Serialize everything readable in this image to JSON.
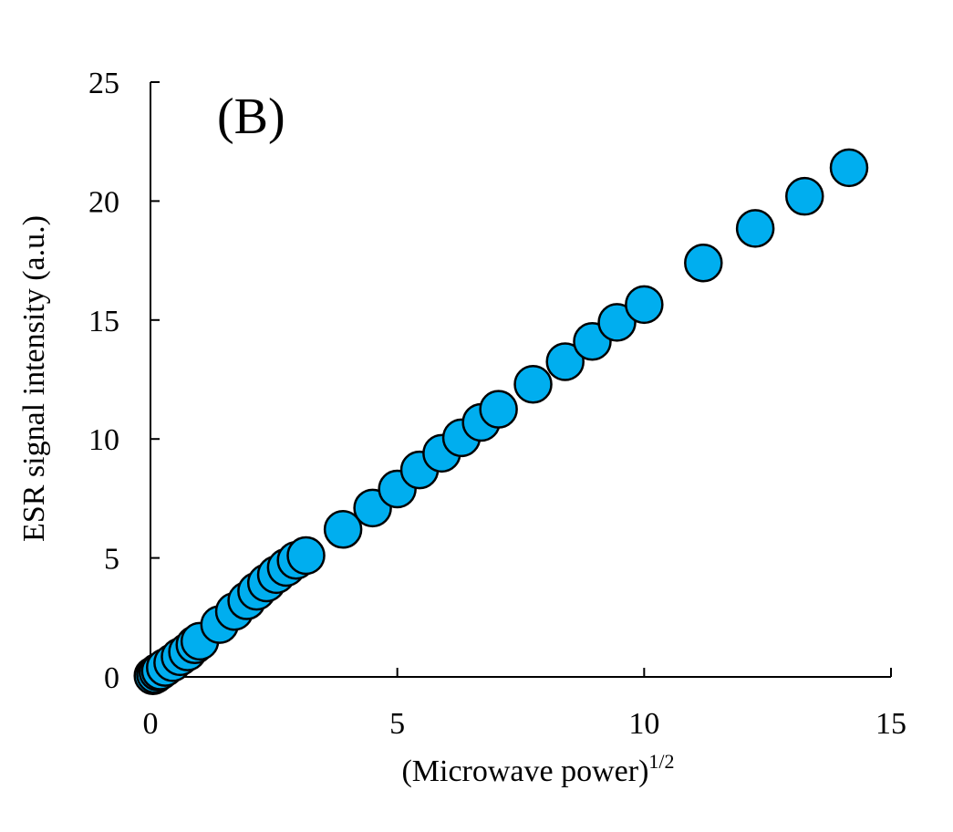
{
  "chart_data": {
    "type": "scatter",
    "panel_label": "(B)",
    "xlabel": "(Microwave power)",
    "xlabel_superscript": "1/2",
    "ylabel": "ESR signal intensity (a.u.)",
    "xlim": [
      0,
      15
    ],
    "ylim": [
      0,
      25
    ],
    "x_ticks": [
      "0",
      "5",
      "10",
      "15"
    ],
    "y_ticks": [
      "0",
      "5",
      "10",
      "15",
      "20",
      "25"
    ],
    "grid": false,
    "legend": "none",
    "marker_color": "#00AEEF",
    "marker_edge_color": "#000000",
    "series": [
      {
        "x": [
          0.05,
          0.1,
          0.15,
          0.2,
          0.3,
          0.45,
          0.6,
          0.75,
          0.9,
          1.0,
          1.4,
          1.7,
          1.95,
          2.15,
          2.35,
          2.55,
          2.75,
          2.95,
          3.15,
          3.9,
          4.5,
          5.0,
          5.45,
          5.9,
          6.3,
          6.7,
          7.05,
          7.75,
          8.4,
          8.95,
          9.45,
          10.0,
          11.2,
          12.25,
          13.25,
          14.15
        ],
        "y": [
          0.05,
          0.1,
          0.2,
          0.25,
          0.4,
          0.6,
          0.85,
          1.05,
          1.35,
          1.5,
          2.2,
          2.75,
          3.2,
          3.6,
          3.95,
          4.3,
          4.6,
          4.9,
          5.1,
          6.2,
          7.1,
          7.9,
          8.7,
          9.4,
          10.05,
          10.7,
          11.25,
          12.3,
          13.25,
          14.1,
          14.9,
          15.65,
          17.4,
          18.85,
          20.2,
          21.4
        ]
      }
    ]
  }
}
